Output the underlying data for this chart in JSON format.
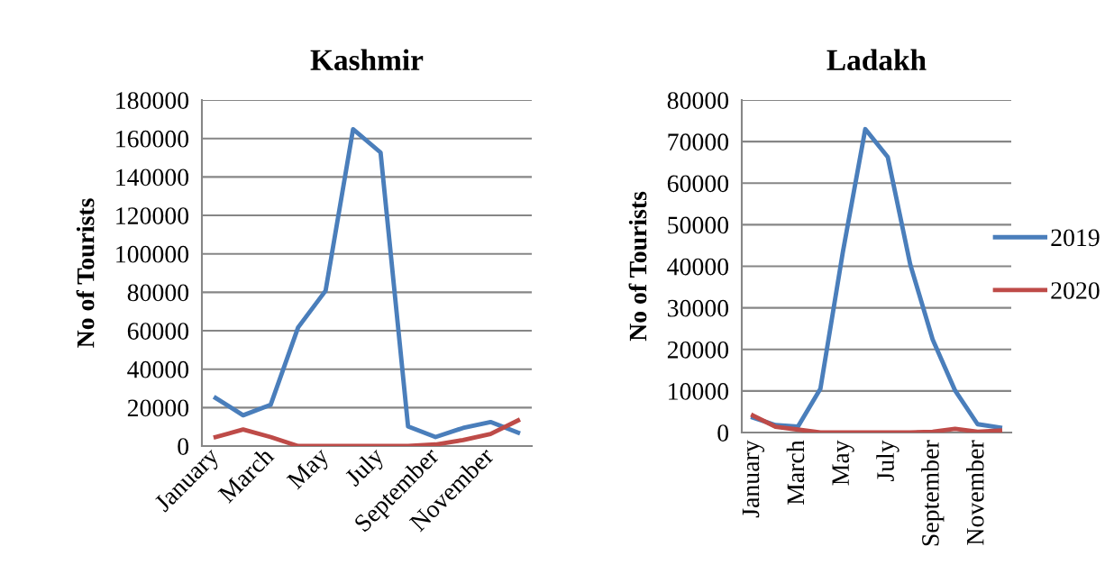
{
  "chart_data": [
    {
      "type": "line",
      "title": "Kashmir",
      "ylabel": "No of Tourists",
      "categories": [
        "January",
        null,
        "March",
        null,
        "May",
        null,
        "July",
        null,
        "September",
        null,
        "November",
        null
      ],
      "series": [
        {
          "color": "#4a7ebb",
          "values": [
            25000,
            16000,
            21400,
            61700,
            80800,
            164800,
            152700,
            10200,
            4700,
            9400,
            12500,
            7000
          ]
        },
        {
          "color": "#be4b48",
          "values": [
            4700,
            8600,
            4700,
            0,
            0,
            0,
            0,
            0,
            800,
            3100,
            6300,
            13300
          ]
        }
      ],
      "ylim": [
        0,
        180000
      ],
      "yticks": [
        0,
        20000,
        40000,
        60000,
        80000,
        100000,
        120000,
        140000,
        160000,
        180000
      ],
      "grid": "y",
      "legend": false,
      "marker": "none",
      "line_style": "solid"
    },
    {
      "type": "line",
      "title": "Ladakh",
      "ylabel": "No of Tourists",
      "categories": [
        "January",
        null,
        "March",
        null,
        "May",
        null,
        "July",
        null,
        "September",
        null,
        "November",
        null
      ],
      "series": [
        {
          "name": "2019",
          "color": "#4a7ebb",
          "values": [
            3600,
            1800,
            1400,
            10500,
            43400,
            73000,
            66300,
            40500,
            22400,
            10100,
            2000,
            1200
          ]
        },
        {
          "name": "2020",
          "color": "#be4b48",
          "values": [
            4100,
            1400,
            700,
            0,
            0,
            0,
            0,
            0,
            200,
            900,
            200,
            500
          ]
        }
      ],
      "ylim": [
        0,
        80000
      ],
      "yticks": [
        0,
        10000,
        20000,
        30000,
        40000,
        50000,
        60000,
        70000,
        80000
      ],
      "grid": "y",
      "legend": "right",
      "marker": "none",
      "line_style": "solid"
    }
  ]
}
